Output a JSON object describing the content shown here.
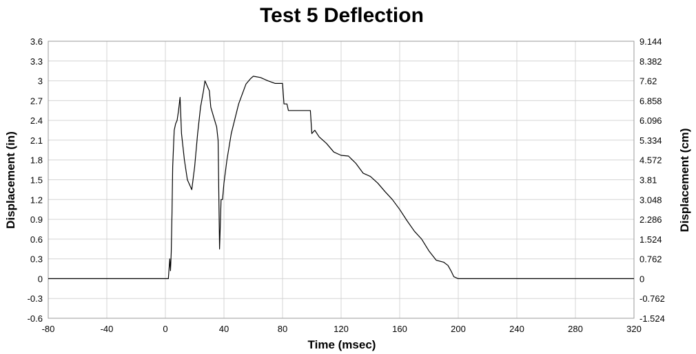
{
  "chart_data": {
    "type": "line",
    "title": "Test 5 Deflection",
    "xlabel": "Time (msec)",
    "ylabel": "Displacement (in)",
    "y2label": "Displacement (cm)",
    "xlim": [
      -80,
      320
    ],
    "ylim": [
      -0.6,
      3.6
    ],
    "y2lim": [
      -1.524,
      9.144
    ],
    "x_ticks": [
      "-80",
      "-40",
      "0",
      "40",
      "80",
      "120",
      "160",
      "200",
      "240",
      "280",
      "320"
    ],
    "y_ticks": [
      "-0.6",
      "-0.3",
      "0",
      "0.3",
      "0.6",
      "0.9",
      "1.2",
      "1.5",
      "1.8",
      "2.1",
      "2.4",
      "2.7",
      "3",
      "3.3",
      "3.6"
    ],
    "y2_ticks": [
      "-1.524",
      "-0.762",
      "0",
      "0.762",
      "1.524",
      "2.286",
      "3.048",
      "3.81",
      "4.572",
      "5.334",
      "6.096",
      "6.858",
      "7.62",
      "8.382",
      "9.144"
    ],
    "grid": true,
    "legend": "none",
    "line_color": "#000000",
    "series": [
      {
        "x": [
          -80,
          -60,
          -40,
          -20,
          0,
          2,
          3,
          3.5,
          4,
          4.5,
          5,
          6,
          7,
          8,
          9,
          10,
          11,
          12,
          13,
          15,
          18,
          20,
          22,
          24,
          26,
          27,
          28,
          29,
          30,
          31,
          33,
          35,
          36,
          37,
          37.5,
          38,
          39,
          40,
          42,
          45,
          50,
          55,
          58,
          60,
          65,
          70,
          75,
          80,
          81,
          83,
          84,
          85,
          90,
          95,
          99,
          100,
          102,
          105,
          110,
          115,
          120,
          125,
          130,
          135,
          140,
          145,
          150,
          155,
          160,
          165,
          170,
          175,
          180,
          185,
          190,
          193,
          195,
          197,
          200,
          220,
          240,
          260,
          280,
          300,
          320
        ],
        "y": [
          0,
          0,
          0,
          0,
          0,
          0,
          0.3,
          0.12,
          0.4,
          1.0,
          1.7,
          2.25,
          2.35,
          2.4,
          2.55,
          2.75,
          2.2,
          2.0,
          1.8,
          1.5,
          1.35,
          1.7,
          2.2,
          2.6,
          2.85,
          3.0,
          2.95,
          2.9,
          2.85,
          2.6,
          2.45,
          2.3,
          2.1,
          0.45,
          0.8,
          1.2,
          1.2,
          1.45,
          1.8,
          2.2,
          2.65,
          2.95,
          3.03,
          3.07,
          3.05,
          3.0,
          2.96,
          2.96,
          2.65,
          2.65,
          2.55,
          2.55,
          2.55,
          2.55,
          2.55,
          2.2,
          2.25,
          2.15,
          2.05,
          1.92,
          1.87,
          1.86,
          1.75,
          1.6,
          1.55,
          1.45,
          1.32,
          1.2,
          1.05,
          0.88,
          0.72,
          0.6,
          0.42,
          0.28,
          0.25,
          0.2,
          0.12,
          0.03,
          0,
          0,
          0,
          0,
          0,
          0,
          0
        ]
      }
    ]
  }
}
